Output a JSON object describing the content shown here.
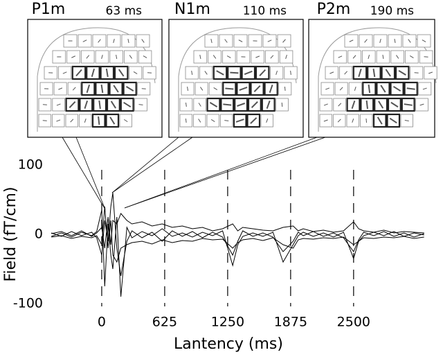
{
  "chart_data": {
    "type": "line",
    "xlabel": "Lantency (ms)",
    "ylabel": "Field (fT/cm)",
    "annotations": [
      {
        "label": "P1m",
        "latency": "63 ms"
      },
      {
        "label": "N1m",
        "latency": "110 ms"
      },
      {
        "label": "P2m",
        "latency": "190 ms"
      }
    ],
    "x": [
      -500,
      -400,
      -300,
      -200,
      -100,
      -50,
      0,
      30,
      63,
      90,
      110,
      150,
      190,
      250,
      300,
      400,
      500,
      600,
      700,
      800,
      900,
      1000,
      1100,
      1200,
      1300,
      1350,
      1400,
      1500,
      1600,
      1700,
      1800,
      1900,
      1950,
      2000,
      2100,
      2200,
      2300,
      2400,
      2500,
      2550,
      2600,
      2700,
      2800,
      2900,
      3000,
      3100,
      3200
    ],
    "series": [
      {
        "color": "#000000",
        "values": [
          2,
          -3,
          4,
          -2,
          3,
          -5,
          -30,
          20,
          -10,
          40,
          60,
          -20,
          -60,
          -10,
          5,
          -5,
          3,
          -10,
          5,
          -3,
          4,
          -5,
          3,
          -4,
          -30,
          -10,
          5,
          -3,
          2,
          -4,
          -25,
          -10,
          3,
          -2,
          4,
          -3,
          2,
          -5,
          -25,
          -8,
          3,
          -2,
          4,
          -3,
          2,
          -4,
          1
        ]
      },
      {
        "color": "#000000",
        "values": [
          -3,
          2,
          -4,
          3,
          -2,
          4,
          35,
          -75,
          15,
          -30,
          -50,
          25,
          -90,
          10,
          -5,
          4,
          -2,
          8,
          -3,
          2,
          -4,
          3,
          -2,
          5,
          -45,
          -15,
          -3,
          2,
          -3,
          3,
          -40,
          -15,
          -2,
          3,
          -3,
          2,
          -4,
          3,
          -35,
          -10,
          -2,
          3,
          -2,
          4,
          -3,
          2,
          -1
        ]
      },
      {
        "color": "#000000",
        "values": [
          1,
          4,
          -2,
          5,
          -3,
          2,
          10,
          -20,
          25,
          -15,
          20,
          15,
          30,
          20,
          15,
          18,
          12,
          15,
          10,
          12,
          8,
          10,
          5,
          8,
          15,
          5,
          10,
          8,
          6,
          5,
          10,
          12,
          5,
          8,
          4,
          6,
          3,
          5,
          18,
          8,
          5,
          3,
          6,
          2,
          4,
          3,
          2
        ]
      },
      {
        "color": "#000000",
        "values": [
          -4,
          -2,
          -6,
          -3,
          -5,
          -2,
          -15,
          40,
          -20,
          20,
          -30,
          -40,
          -20,
          -15,
          -12,
          -10,
          -14,
          -8,
          -12,
          -9,
          -10,
          -6,
          -8,
          -7,
          -20,
          -12,
          -8,
          -6,
          -9,
          -5,
          -15,
          -20,
          -8,
          -6,
          -7,
          -5,
          -6,
          -4,
          -15,
          -10,
          -5,
          -6,
          -4,
          -5,
          -3,
          -6,
          -4
        ]
      }
    ],
    "xlim": [
      -515,
      3195
    ],
    "xticks": [
      0,
      625,
      1250,
      1875,
      2500
    ],
    "ylim": [
      -100,
      100
    ],
    "yticks": [
      -100,
      0,
      100
    ],
    "grid": true
  }
}
